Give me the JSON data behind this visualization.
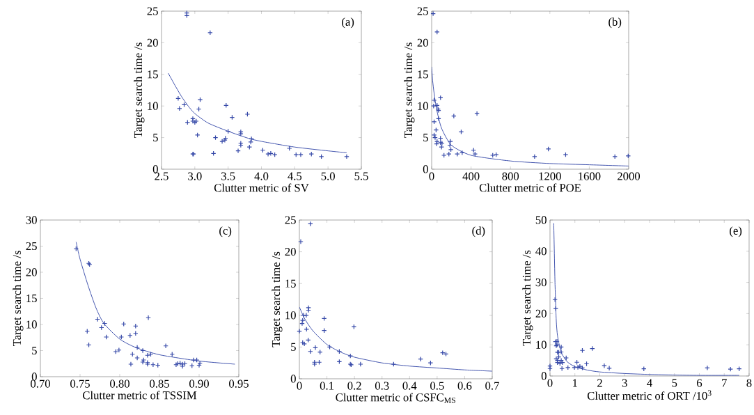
{
  "chart_data": [
    {
      "type": "scatter",
      "xlabel": "Clutter metric of SV",
      "ylabel": "Target search time /s",
      "annotations": [
        "(a)"
      ],
      "marker": "cross",
      "grid": false,
      "xlim": [
        2.5,
        5.5
      ],
      "ylim": [
        0,
        25
      ],
      "xticks": [
        {
          "value": 2.5,
          "label": "2.5"
        },
        {
          "value": 3,
          "label": "3.0"
        },
        {
          "value": 3.5,
          "label": "3.5"
        },
        {
          "value": 4,
          "label": "4.0"
        },
        {
          "value": 4.5,
          "label": "4.5"
        },
        {
          "value": 5,
          "label": "5.0"
        },
        {
          "value": 5.5,
          "label": "5.5"
        }
      ],
      "yticks": [
        0,
        5,
        10,
        15,
        20,
        25
      ],
      "series": [
        {
          "color": "#3548a8",
          "x": [
            2.88,
            2.88,
            3.23,
            2.75,
            2.77,
            2.84,
            2.89,
            2.97,
            2.97,
            3.0,
            3.02,
            3.04,
            3.06,
            3.08,
            2.97,
            2.98,
            3.28,
            3.31,
            3.41,
            3.45,
            3.46,
            3.47,
            3.5,
            3.56,
            3.65,
            3.69,
            3.69,
            3.69,
            3.69,
            3.79,
            3.82,
            3.84,
            3.85,
            4.02,
            4.1,
            4.14,
            4.2,
            4.42,
            4.52,
            4.59,
            4.75,
            4.9,
            5.28
          ],
          "values": [
            24.7,
            24.3,
            21.6,
            11.2,
            9.6,
            10.2,
            7.4,
            8.0,
            7.6,
            7.4,
            7.6,
            5.4,
            9.5,
            11.0,
            2.4,
            2.4,
            2.5,
            5.0,
            4.4,
            4.6,
            4.9,
            10.1,
            6.0,
            8.2,
            2.9,
            5.9,
            5.6,
            4.1,
            3.8,
            8.7,
            3.5,
            4.3,
            4.8,
            3.0,
            2.4,
            2.5,
            2.3,
            3.3,
            2.3,
            2.3,
            2.4,
            2.0,
            2.0
          ]
        },
        {
          "type": "line",
          "marker": "none",
          "color": "#3548a8",
          "x": [
            2.6,
            2.7,
            2.8,
            2.9,
            3.0,
            3.2,
            3.5,
            3.8,
            4.0,
            4.5,
            5.0,
            5.28
          ],
          "values": [
            15.2,
            13.3,
            11.5,
            10.0,
            8.8,
            7.3,
            6.0,
            4.9,
            4.4,
            3.5,
            2.9,
            2.6
          ]
        }
      ]
    },
    {
      "type": "scatter",
      "xlabel": "Clutter metric of POE",
      "ylabel": "Target search time /s",
      "annotations": [
        "(b)"
      ],
      "marker": "cross",
      "grid": false,
      "xlim": [
        0,
        2000
      ],
      "ylim": [
        0,
        25
      ],
      "xticks": [
        0,
        400,
        800,
        1200,
        1600,
        2000
      ],
      "yticks": [
        0,
        5,
        10,
        15,
        20,
        25
      ],
      "series": [
        {
          "color": "#3548a8",
          "x": [
            15,
            55,
            25,
            20,
            55,
            65,
            70,
            70,
            90,
            25,
            45,
            25,
            35,
            55,
            50,
            90,
            90,
            105,
            100,
            125,
            190,
            185,
            195,
            175,
            225,
            260,
            300,
            310,
            425,
            440,
            460,
            620,
            655,
            1045,
            1185,
            1360,
            1860,
            1995
          ],
          "values": [
            24.6,
            21.7,
            10.9,
            10.0,
            10.1,
            9.5,
            9.3,
            8.0,
            11.3,
            7.5,
            6.2,
            5.4,
            5.0,
            4.4,
            4.0,
            4.9,
            4.2,
            4.1,
            3.5,
            2.2,
            4.4,
            3.8,
            3.1,
            2.4,
            8.4,
            2.4,
            5.9,
            2.6,
            3.0,
            2.4,
            8.8,
            2.2,
            2.3,
            2.0,
            3.2,
            2.3,
            2.0,
            2.1
          ]
        },
        {
          "type": "line",
          "marker": "none",
          "color": "#3548a8",
          "x": [
            0,
            10,
            25,
            50,
            100,
            200,
            400,
            800,
            1200,
            1600,
            2000
          ],
          "values": [
            16.2,
            14.0,
            12.0,
            9.5,
            6.5,
            3.8,
            2.2,
            1.3,
            0.9,
            0.7,
            0.5
          ]
        }
      ]
    },
    {
      "type": "scatter",
      "xlabel": "Clutter metric of TSSIM",
      "ylabel": "Target search time /s",
      "annotations": [
        "(c)"
      ],
      "marker": "cross",
      "grid": false,
      "xlim": [
        0.7,
        0.95
      ],
      "ylim": [
        0,
        30
      ],
      "xticks": [
        {
          "value": 0.7,
          "label": "0.70"
        },
        {
          "value": 0.75,
          "label": "0.75"
        },
        {
          "value": 0.8,
          "label": "0.80"
        },
        {
          "value": 0.85,
          "label": "0.85"
        },
        {
          "value": 0.9,
          "label": "0.90"
        },
        {
          "value": 0.95,
          "label": "0.95"
        }
      ],
      "yticks": [
        0,
        5,
        10,
        15,
        20,
        25,
        30
      ],
      "series": [
        {
          "color": "#3548a8",
          "x": [
            0.745,
            0.761,
            0.762,
            0.759,
            0.761,
            0.772,
            0.777,
            0.781,
            0.783,
            0.795,
            0.799,
            0.802,
            0.805,
            0.813,
            0.814,
            0.816,
            0.82,
            0.82,
            0.822,
            0.822,
            0.829,
            0.829,
            0.83,
            0.835,
            0.835,
            0.835,
            0.836,
            0.839,
            0.842,
            0.848,
            0.858,
            0.866,
            0.871,
            0.873,
            0.876,
            0.879,
            0.879,
            0.882,
            0.891,
            0.893,
            0.897,
            0.9,
            0.901
          ],
          "values": [
            24.5,
            21.7,
            21.5,
            8.7,
            6.1,
            11.0,
            9.4,
            10.2,
            7.6,
            4.8,
            5.1,
            7.6,
            10.1,
            7.9,
            2.4,
            4.3,
            9.7,
            8.3,
            5.6,
            3.6,
            5.0,
            2.8,
            3.2,
            4.1,
            2.7,
            2.4,
            11.3,
            4.3,
            2.3,
            2.2,
            5.9,
            4.3,
            2.3,
            2.5,
            2.6,
            2.0,
            2.4,
            2.5,
            2.1,
            3.2,
            3.2,
            2.2,
            2.6
          ]
        },
        {
          "type": "line",
          "marker": "none",
          "color": "#3548a8",
          "x": [
            0.745,
            0.75,
            0.76,
            0.77,
            0.78,
            0.8,
            0.82,
            0.85,
            0.9,
            0.945
          ],
          "values": [
            25.8,
            22.5,
            17.5,
            13.2,
            10.2,
            7.2,
            5.6,
            4.2,
            3.0,
            2.4
          ]
        }
      ]
    },
    {
      "type": "scatter",
      "xlabel": "Clutter metric of CSFC$_{MS}$",
      "ylabel": "Target search time /s",
      "annotations": [
        "(d)"
      ],
      "marker": "cross",
      "grid": false,
      "xlim": [
        0,
        0.7
      ],
      "ylim": [
        0,
        25
      ],
      "xticks": [
        0,
        0.1,
        0.2,
        0.3,
        0.4,
        0.5,
        0.6,
        0.7
      ],
      "yticks": [
        0,
        5,
        10,
        15,
        20,
        25
      ],
      "series": [
        {
          "color": "#3548a8",
          "x": [
            0.005,
            0.04,
            0.0,
            0.01,
            0.012,
            0.015,
            0.025,
            0.026,
            0.033,
            0.033,
            0.032,
            0.012,
            0.018,
            0.04,
            0.055,
            0.055,
            0.058,
            0.072,
            0.075,
            0.09,
            0.09,
            0.11,
            0.145,
            0.145,
            0.185,
            0.185,
            0.188,
            0.198,
            0.222,
            0.342,
            0.44,
            0.476,
            0.52,
            0.532
          ],
          "values": [
            21.6,
            24.4,
            7.5,
            8.7,
            9.2,
            10.0,
            10.0,
            7.8,
            11.2,
            10.8,
            6.1,
            5.7,
            5.5,
            4.3,
            2.6,
            2.3,
            4.9,
            2.6,
            4.2,
            9.5,
            7.6,
            5.0,
            4.3,
            2.7,
            3.6,
            2.3,
            2.2,
            8.2,
            2.3,
            2.3,
            3.1,
            2.5,
            4.1,
            3.9
          ]
        },
        {
          "type": "line",
          "marker": "none",
          "color": "#3548a8",
          "x": [
            0,
            0.02,
            0.05,
            0.1,
            0.15,
            0.2,
            0.3,
            0.4,
            0.5,
            0.6,
            0.7
          ],
          "values": [
            11.3,
            9.4,
            7.5,
            5.4,
            4.2,
            3.4,
            2.5,
            2.0,
            1.7,
            1.4,
            1.2
          ]
        }
      ]
    },
    {
      "type": "scatter",
      "xlabel": "Clutter metric of ORT /10$^{3}$",
      "ylabel": "Target search time /s",
      "annotations": [
        "(e)"
      ],
      "marker": "cross",
      "grid": false,
      "xlim": [
        0,
        8
      ],
      "ylim": [
        0,
        50
      ],
      "xticks": [
        0,
        1,
        2,
        3,
        4,
        5,
        6,
        7,
        8
      ],
      "yticks": [
        0,
        10,
        20,
        30,
        40,
        50
      ],
      "series": [
        {
          "color": "#3548a8",
          "x": [
            0.0,
            0.0,
            0.2,
            0.23,
            0.22,
            0.28,
            0.28,
            0.25,
            0.3,
            0.35,
            0.45,
            0.45,
            0.25,
            0.3,
            0.3,
            0.35,
            0.4,
            0.45,
            0.5,
            0.48,
            0.65,
            0.72,
            0.98,
            1.08,
            1.12,
            1.2,
            1.3,
            1.3,
            1.47,
            1.7,
            2.18,
            2.38,
            3.77,
            6.32,
            7.25,
            7.6
          ],
          "values": [
            3.2,
            2.4,
            24.5,
            21.6,
            11.0,
            11.1,
            10.0,
            9.7,
            7.6,
            7.6,
            9.3,
            7.7,
            5.5,
            5.0,
            4.3,
            6.1,
            4.0,
            5.0,
            4.3,
            2.4,
            5.8,
            2.7,
            2.7,
            4.4,
            2.8,
            3.1,
            8.2,
            2.6,
            3.9,
            8.8,
            3.3,
            2.5,
            2.3,
            2.6,
            2.2,
            2.3
          ]
        },
        {
          "type": "line",
          "marker": "none",
          "color": "#3548a8",
          "x": [
            0.15,
            0.2,
            0.25,
            0.3,
            0.4,
            0.5,
            0.7,
            1,
            1.5,
            2,
            3,
            4,
            5,
            6,
            7.6
          ],
          "values": [
            49,
            30,
            18,
            13,
            9,
            6.8,
            4.5,
            3.0,
            1.9,
            1.3,
            0.8,
            0.5,
            0.3,
            0.2,
            0.2
          ]
        }
      ]
    }
  ]
}
